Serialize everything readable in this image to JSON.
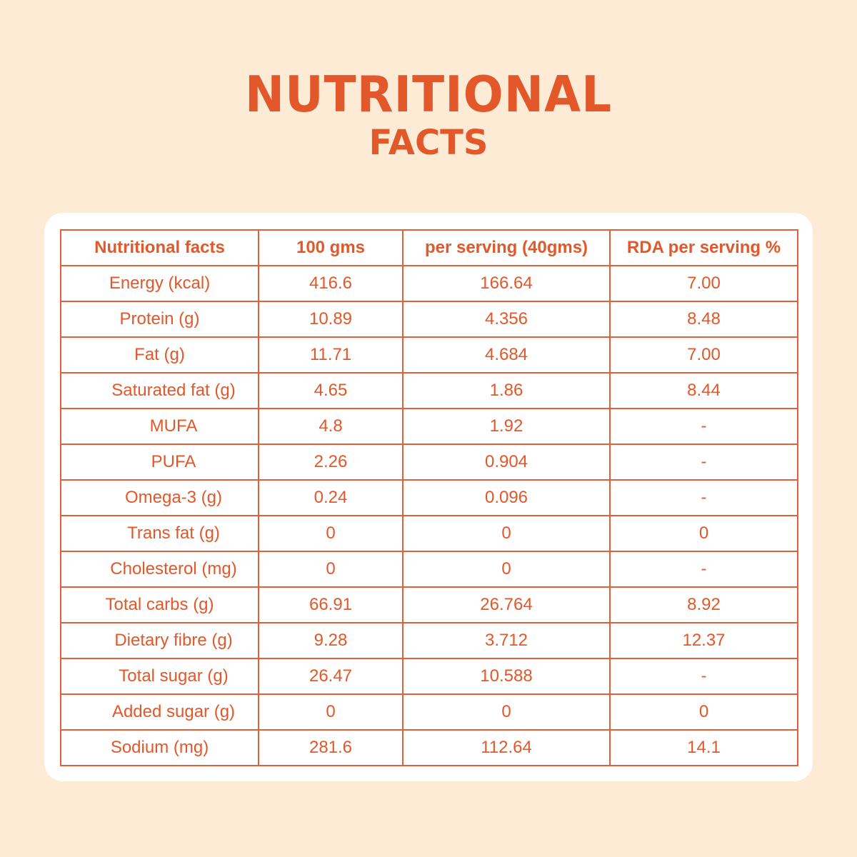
{
  "title": {
    "line1": "NUTRITIONAL",
    "line2": "FACTS"
  },
  "table": {
    "headers": [
      "Nutritional facts",
      "100 gms",
      "per serving (40gms)",
      "RDA per serving %"
    ],
    "rows": [
      {
        "label": "Energy (kcal)",
        "indent": false,
        "per100": "416.6",
        "per_serving": "166.64",
        "rda": "7.00"
      },
      {
        "label": "Protein (g)",
        "indent": false,
        "per100": "10.89",
        "per_serving": "4.356",
        "rda": "8.48"
      },
      {
        "label": "Fat (g)",
        "indent": false,
        "per100": "11.71",
        "per_serving": "4.684",
        "rda": "7.00"
      },
      {
        "label": "Saturated fat (g)",
        "indent": true,
        "per100": "4.65",
        "per_serving": "1.86",
        "rda": "8.44"
      },
      {
        "label": "MUFA",
        "indent": true,
        "per100": "4.8",
        "per_serving": "1.92",
        "rda": "-"
      },
      {
        "label": "PUFA",
        "indent": true,
        "per100": "2.26",
        "per_serving": "0.904",
        "rda": "-"
      },
      {
        "label": "Omega-3 (g)",
        "indent": true,
        "per100": "0.24",
        "per_serving": "0.096",
        "rda": "-"
      },
      {
        "label": "Trans fat (g)",
        "indent": true,
        "per100": "0",
        "per_serving": "0",
        "rda": "0"
      },
      {
        "label": "Cholesterol (mg)",
        "indent": true,
        "per100": "0",
        "per_serving": "0",
        "rda": "-"
      },
      {
        "label": "Total carbs (g)",
        "indent": false,
        "per100": "66.91",
        "per_serving": "26.764",
        "rda": "8.92"
      },
      {
        "label": "Dietary fibre (g)",
        "indent": true,
        "per100": "9.28",
        "per_serving": "3.712",
        "rda": "12.37"
      },
      {
        "label": "Total sugar (g)",
        "indent": true,
        "per100": "26.47",
        "per_serving": "10.588",
        "rda": "-"
      },
      {
        "label": "Added sugar (g)",
        "indent": true,
        "per100": "0",
        "per_serving": "0",
        "rda": "0"
      },
      {
        "label": "Sodium (mg)",
        "indent": false,
        "per100": "281.6",
        "per_serving": "112.64",
        "rda": "14.1"
      }
    ]
  },
  "colors": {
    "background": "#FDEBD5",
    "accent": "#E2582A",
    "card": "#FFFFFF"
  }
}
